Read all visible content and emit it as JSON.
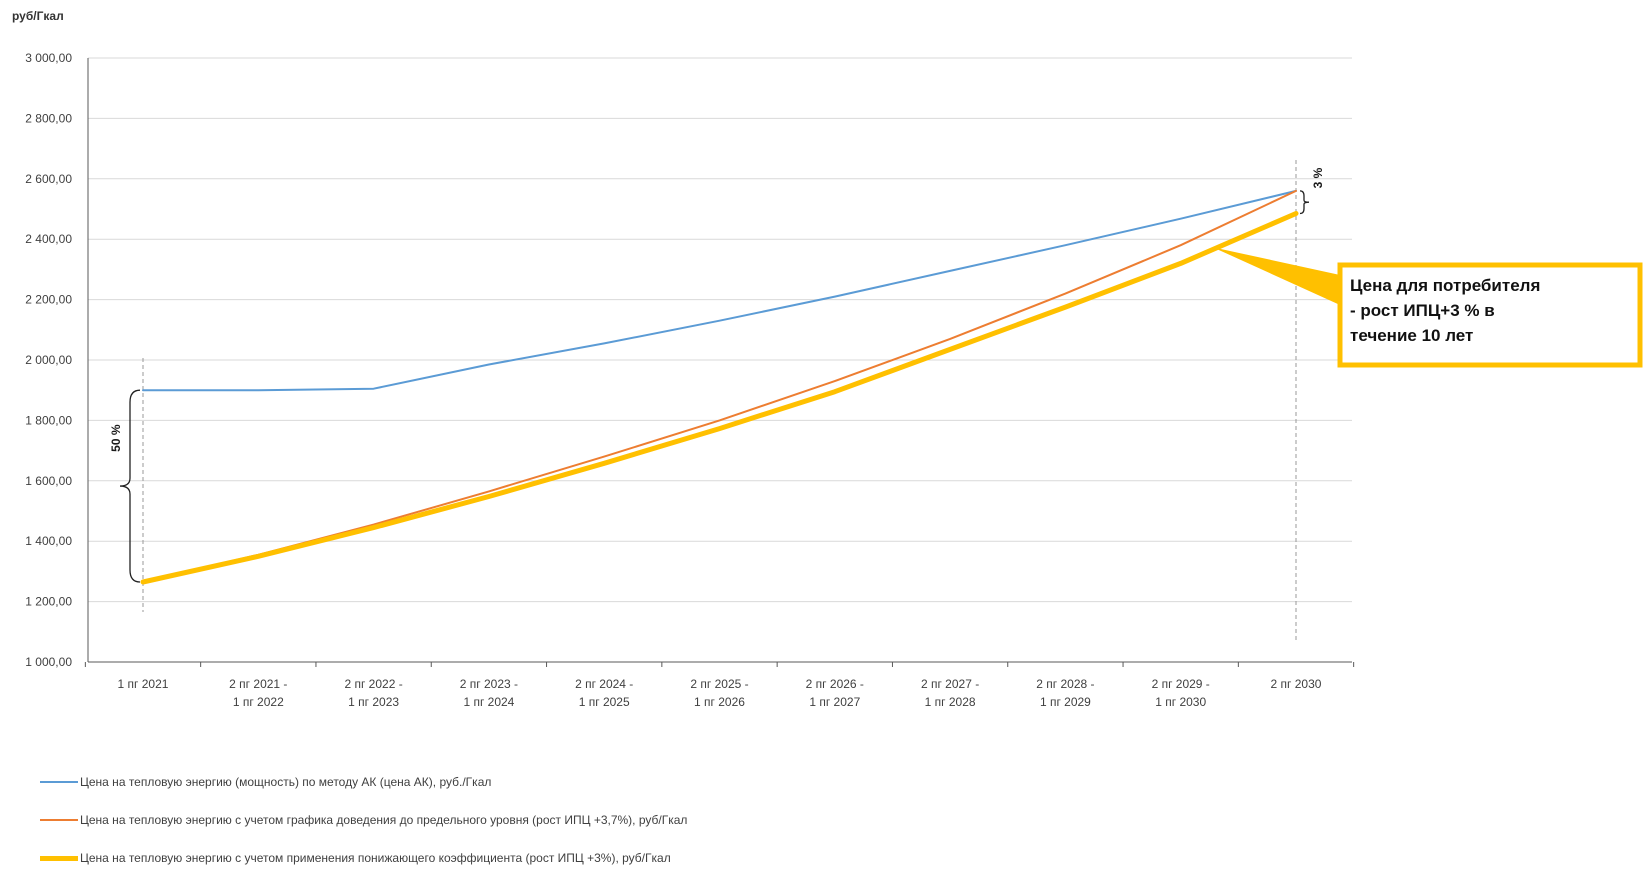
{
  "chart_data": {
    "type": "line",
    "ylabel": "руб/Гкал",
    "ylim": [
      1000,
      3000
    ],
    "ytick_step": 200,
    "ytick_labels": [
      "1 000,00",
      "1 200,00",
      "1 400,00",
      "1 600,00",
      "1 800,00",
      "2 000,00",
      "2 200,00",
      "2 400,00",
      "2 600,00",
      "2 800,00",
      "3 000,00"
    ],
    "categories": [
      [
        "1 пг 2021"
      ],
      [
        "2 пг 2021 -",
        "1 пг 2022"
      ],
      [
        "2 пг 2022 -",
        "1 пг 2023"
      ],
      [
        "2 пг 2023 -",
        "1 пг 2024"
      ],
      [
        "2 пг 2024 -",
        "1 пг 2025"
      ],
      [
        "2 пг 2025 -",
        "1 пг 2026"
      ],
      [
        "2 пг 2026 -",
        "1 пг 2027"
      ],
      [
        "2 пг 2027 -",
        "1 пг 2028"
      ],
      [
        "2 пг 2028 -",
        "1 пг 2029"
      ],
      [
        "2 пг 2029 -",
        "1 пг 2030"
      ],
      [
        "2 пг 2030"
      ]
    ],
    "series": [
      {
        "name": "Цена на тепловую энергию (мощность) по методу АК (цена АК), руб./Гкал",
        "color": "#5b9bd5",
        "width": 2,
        "values": [
          1900,
          1900,
          1905,
          1985,
          2055,
          2130,
          2210,
          2295,
          2380,
          2468,
          2560
        ]
      },
      {
        "name": "Цена на тепловую энергию с учетом графика доведения до предельного уровня (рост ИПЦ +3,7%), руб/Гкал",
        "color": "#ed7d31",
        "width": 2,
        "values": [
          1265,
          1355,
          1455,
          1565,
          1680,
          1800,
          1930,
          2070,
          2220,
          2380,
          2560
        ]
      },
      {
        "name": "Цена на тепловую энергию с учетом применения понижающего коэффициента (рост ИПЦ +3%), руб/Гкал",
        "color": "#ffc000",
        "width": 5,
        "values": [
          1265,
          1350,
          1445,
          1548,
          1658,
          1773,
          1895,
          2035,
          2175,
          2320,
          2485
        ]
      }
    ],
    "annotations": {
      "left_gap": "50 %",
      "right_gap": "3 %",
      "callout": [
        "Цена для потребителя",
        "- рост ИПЦ+3 % в",
        "течение 10 лет"
      ]
    },
    "legend_position": "bottom-left",
    "grid": true
  }
}
